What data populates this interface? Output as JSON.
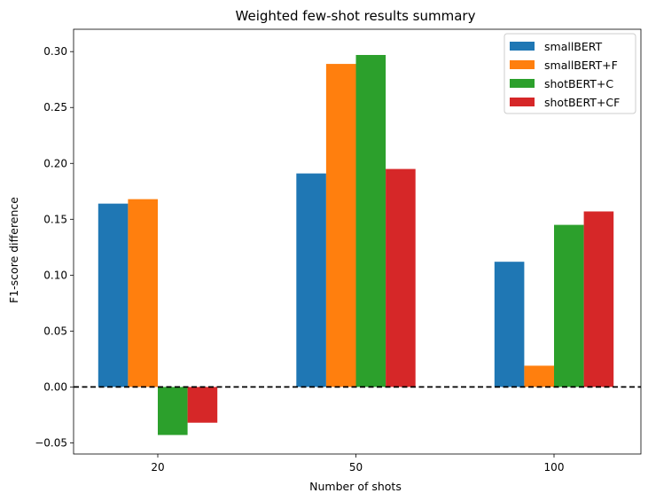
{
  "chart_data": {
    "type": "bar",
    "title": "Weighted few-shot results summary",
    "xlabel": "Number of shots",
    "ylabel": "F1-score difference",
    "categories": [
      "20",
      "50",
      "100"
    ],
    "ylim": [
      -0.06,
      0.32
    ],
    "yticks": [
      "−0.05",
      "0.00",
      "0.05",
      "0.10",
      "0.15",
      "0.20",
      "0.25",
      "0.30"
    ],
    "ytick_values": [
      -0.05,
      0.0,
      0.05,
      0.1,
      0.15,
      0.2,
      0.25,
      0.3
    ],
    "reference_line": {
      "y": 0.0,
      "style": "dashed",
      "color": "#000000"
    },
    "legend_position": "top-right",
    "series": [
      {
        "name": "smallBERT",
        "color": "#1f77b4",
        "values": [
          0.164,
          0.191,
          0.112
        ]
      },
      {
        "name": "smallBERT+F",
        "color": "#ff7f0e",
        "values": [
          0.168,
          0.289,
          0.019
        ]
      },
      {
        "name": "shotBERT+C",
        "color": "#2ca02c",
        "values": [
          -0.043,
          0.297,
          0.145
        ]
      },
      {
        "name": "shotBERT+CF",
        "color": "#d62728",
        "values": [
          -0.032,
          0.195,
          0.157
        ]
      }
    ]
  }
}
